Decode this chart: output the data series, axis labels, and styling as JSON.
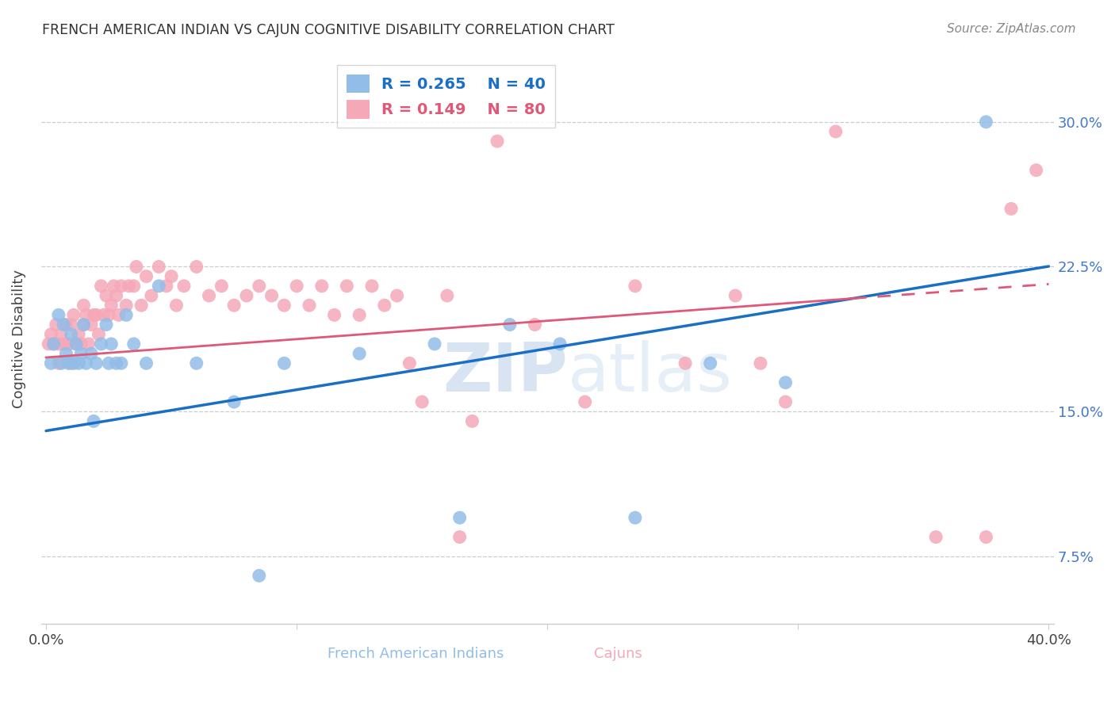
{
  "title": "FRENCH AMERICAN INDIAN VS CAJUN COGNITIVE DISABILITY CORRELATION CHART",
  "source": "Source: ZipAtlas.com",
  "xlabel_blue": "French American Indians",
  "xlabel_pink": "Cajuns",
  "ylabel": "Cognitive Disability",
  "xlim": [
    -0.002,
    0.402
  ],
  "ylim": [
    0.04,
    0.335
  ],
  "yticks": [
    0.075,
    0.15,
    0.225,
    0.3
  ],
  "ytick_labels": [
    "7.5%",
    "15.0%",
    "22.5%",
    "30.0%"
  ],
  "xtick_positions": [
    0.0,
    0.1,
    0.2,
    0.3,
    0.4
  ],
  "xtick_labels": [
    "0.0%",
    "",
    "",
    "",
    "40.0%"
  ],
  "blue_R": 0.265,
  "blue_N": 40,
  "pink_R": 0.149,
  "pink_N": 80,
  "blue_color": "#92bde8",
  "pink_color": "#f5a8b8",
  "blue_line_color": "#1a6fc4",
  "pink_line_color": "#e05878",
  "watermark_zip": "ZIP",
  "watermark_atlas": "atlas",
  "blue_x": [
    0.002,
    0.003,
    0.005,
    0.006,
    0.007,
    0.008,
    0.009,
    0.01,
    0.011,
    0.012,
    0.013,
    0.014,
    0.015,
    0.016,
    0.018,
    0.019,
    0.02,
    0.022,
    0.024,
    0.025,
    0.026,
    0.028,
    0.03,
    0.032,
    0.035,
    0.04,
    0.045,
    0.06,
    0.075,
    0.085,
    0.095,
    0.125,
    0.155,
    0.165,
    0.185,
    0.205,
    0.235,
    0.265,
    0.295,
    0.375
  ],
  "blue_y": [
    0.175,
    0.185,
    0.2,
    0.175,
    0.195,
    0.18,
    0.175,
    0.19,
    0.175,
    0.185,
    0.175,
    0.18,
    0.195,
    0.175,
    0.18,
    0.145,
    0.175,
    0.185,
    0.195,
    0.175,
    0.185,
    0.175,
    0.175,
    0.2,
    0.185,
    0.175,
    0.215,
    0.175,
    0.155,
    0.065,
    0.175,
    0.18,
    0.185,
    0.095,
    0.195,
    0.185,
    0.095,
    0.175,
    0.165,
    0.3
  ],
  "pink_x": [
    0.001,
    0.002,
    0.003,
    0.004,
    0.005,
    0.005,
    0.006,
    0.007,
    0.008,
    0.009,
    0.01,
    0.01,
    0.011,
    0.012,
    0.013,
    0.014,
    0.015,
    0.015,
    0.016,
    0.017,
    0.018,
    0.019,
    0.02,
    0.021,
    0.022,
    0.023,
    0.024,
    0.025,
    0.026,
    0.027,
    0.028,
    0.029,
    0.03,
    0.032,
    0.033,
    0.035,
    0.036,
    0.038,
    0.04,
    0.042,
    0.045,
    0.048,
    0.05,
    0.052,
    0.055,
    0.06,
    0.065,
    0.07,
    0.075,
    0.08,
    0.085,
    0.09,
    0.095,
    0.1,
    0.105,
    0.11,
    0.115,
    0.12,
    0.125,
    0.13,
    0.135,
    0.14,
    0.145,
    0.15,
    0.16,
    0.17,
    0.18,
    0.195,
    0.215,
    0.235,
    0.255,
    0.275,
    0.285,
    0.295,
    0.315,
    0.355,
    0.375,
    0.385,
    0.395,
    0.165
  ],
  "pink_y": [
    0.185,
    0.19,
    0.185,
    0.195,
    0.185,
    0.175,
    0.19,
    0.185,
    0.195,
    0.185,
    0.195,
    0.175,
    0.2,
    0.185,
    0.19,
    0.185,
    0.205,
    0.195,
    0.2,
    0.185,
    0.195,
    0.2,
    0.2,
    0.19,
    0.215,
    0.2,
    0.21,
    0.2,
    0.205,
    0.215,
    0.21,
    0.2,
    0.215,
    0.205,
    0.215,
    0.215,
    0.225,
    0.205,
    0.22,
    0.21,
    0.225,
    0.215,
    0.22,
    0.205,
    0.215,
    0.225,
    0.21,
    0.215,
    0.205,
    0.21,
    0.215,
    0.21,
    0.205,
    0.215,
    0.205,
    0.215,
    0.2,
    0.215,
    0.2,
    0.215,
    0.205,
    0.21,
    0.175,
    0.155,
    0.21,
    0.145,
    0.29,
    0.195,
    0.155,
    0.215,
    0.175,
    0.21,
    0.175,
    0.155,
    0.295,
    0.085,
    0.085,
    0.255,
    0.275,
    0.085
  ],
  "blue_intercept": 0.14,
  "blue_slope": 0.213,
  "pink_intercept": 0.178,
  "pink_slope": 0.095
}
